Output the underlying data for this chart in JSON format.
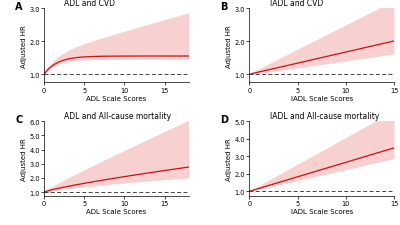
{
  "panels": [
    {
      "label": "A",
      "title": "ADL and CVD",
      "xlabel": "ADL Scale Scores",
      "ylabel": "Adjusted HR",
      "xmin": 0,
      "xmax": 18,
      "xticks": [
        0,
        5,
        10,
        15
      ],
      "ylim": [
        0.75,
        3.0
      ],
      "yticks": [
        1.0,
        2.0,
        3.0
      ],
      "curve_type": "log_adl_cvd",
      "dashed_y": 1.0
    },
    {
      "label": "B",
      "title": "IADL and CVD",
      "xlabel": "IADL Scale Scores",
      "ylabel": "Adjusted HR",
      "xmin": 0,
      "xmax": 15,
      "xticks": [
        0,
        5,
        10,
        15
      ],
      "ylim": [
        0.75,
        3.0
      ],
      "yticks": [
        1.0,
        2.0,
        3.0
      ],
      "curve_type": "linear_iadl_cvd",
      "dashed_y": 1.0
    },
    {
      "label": "C",
      "title": "ADL and All-cause mortality",
      "xlabel": "ADL Scale Scores",
      "ylabel": "Adjusted HR",
      "xmin": 0,
      "xmax": 18,
      "xticks": [
        0,
        5,
        10,
        15
      ],
      "ylim": [
        0.75,
        6.0
      ],
      "yticks": [
        1.0,
        2.0,
        3.0,
        4.0,
        5.0,
        6.0
      ],
      "curve_type": "log_adl_mort",
      "dashed_y": 1.0
    },
    {
      "label": "D",
      "title": "IADL and All-cause mortality",
      "xlabel": "IADL Scale Scores",
      "ylabel": "Adjusted HR",
      "xmin": 0,
      "xmax": 15,
      "xticks": [
        0,
        5,
        10,
        15
      ],
      "ylim": [
        0.75,
        5.0
      ],
      "yticks": [
        1.0,
        2.0,
        3.0,
        4.0,
        5.0
      ],
      "curve_type": "linear_iadl_mort",
      "dashed_y": 1.0
    }
  ],
  "line_color": "#cc1111",
  "fill_color": "#f2aaaa",
  "fill_alpha": 0.55,
  "dashed_color": "#444444",
  "bg_color": "#ffffff",
  "title_fontsize": 5.5,
  "label_fontsize": 5.0,
  "tick_fontsize": 4.8,
  "panel_label_fontsize": 7
}
